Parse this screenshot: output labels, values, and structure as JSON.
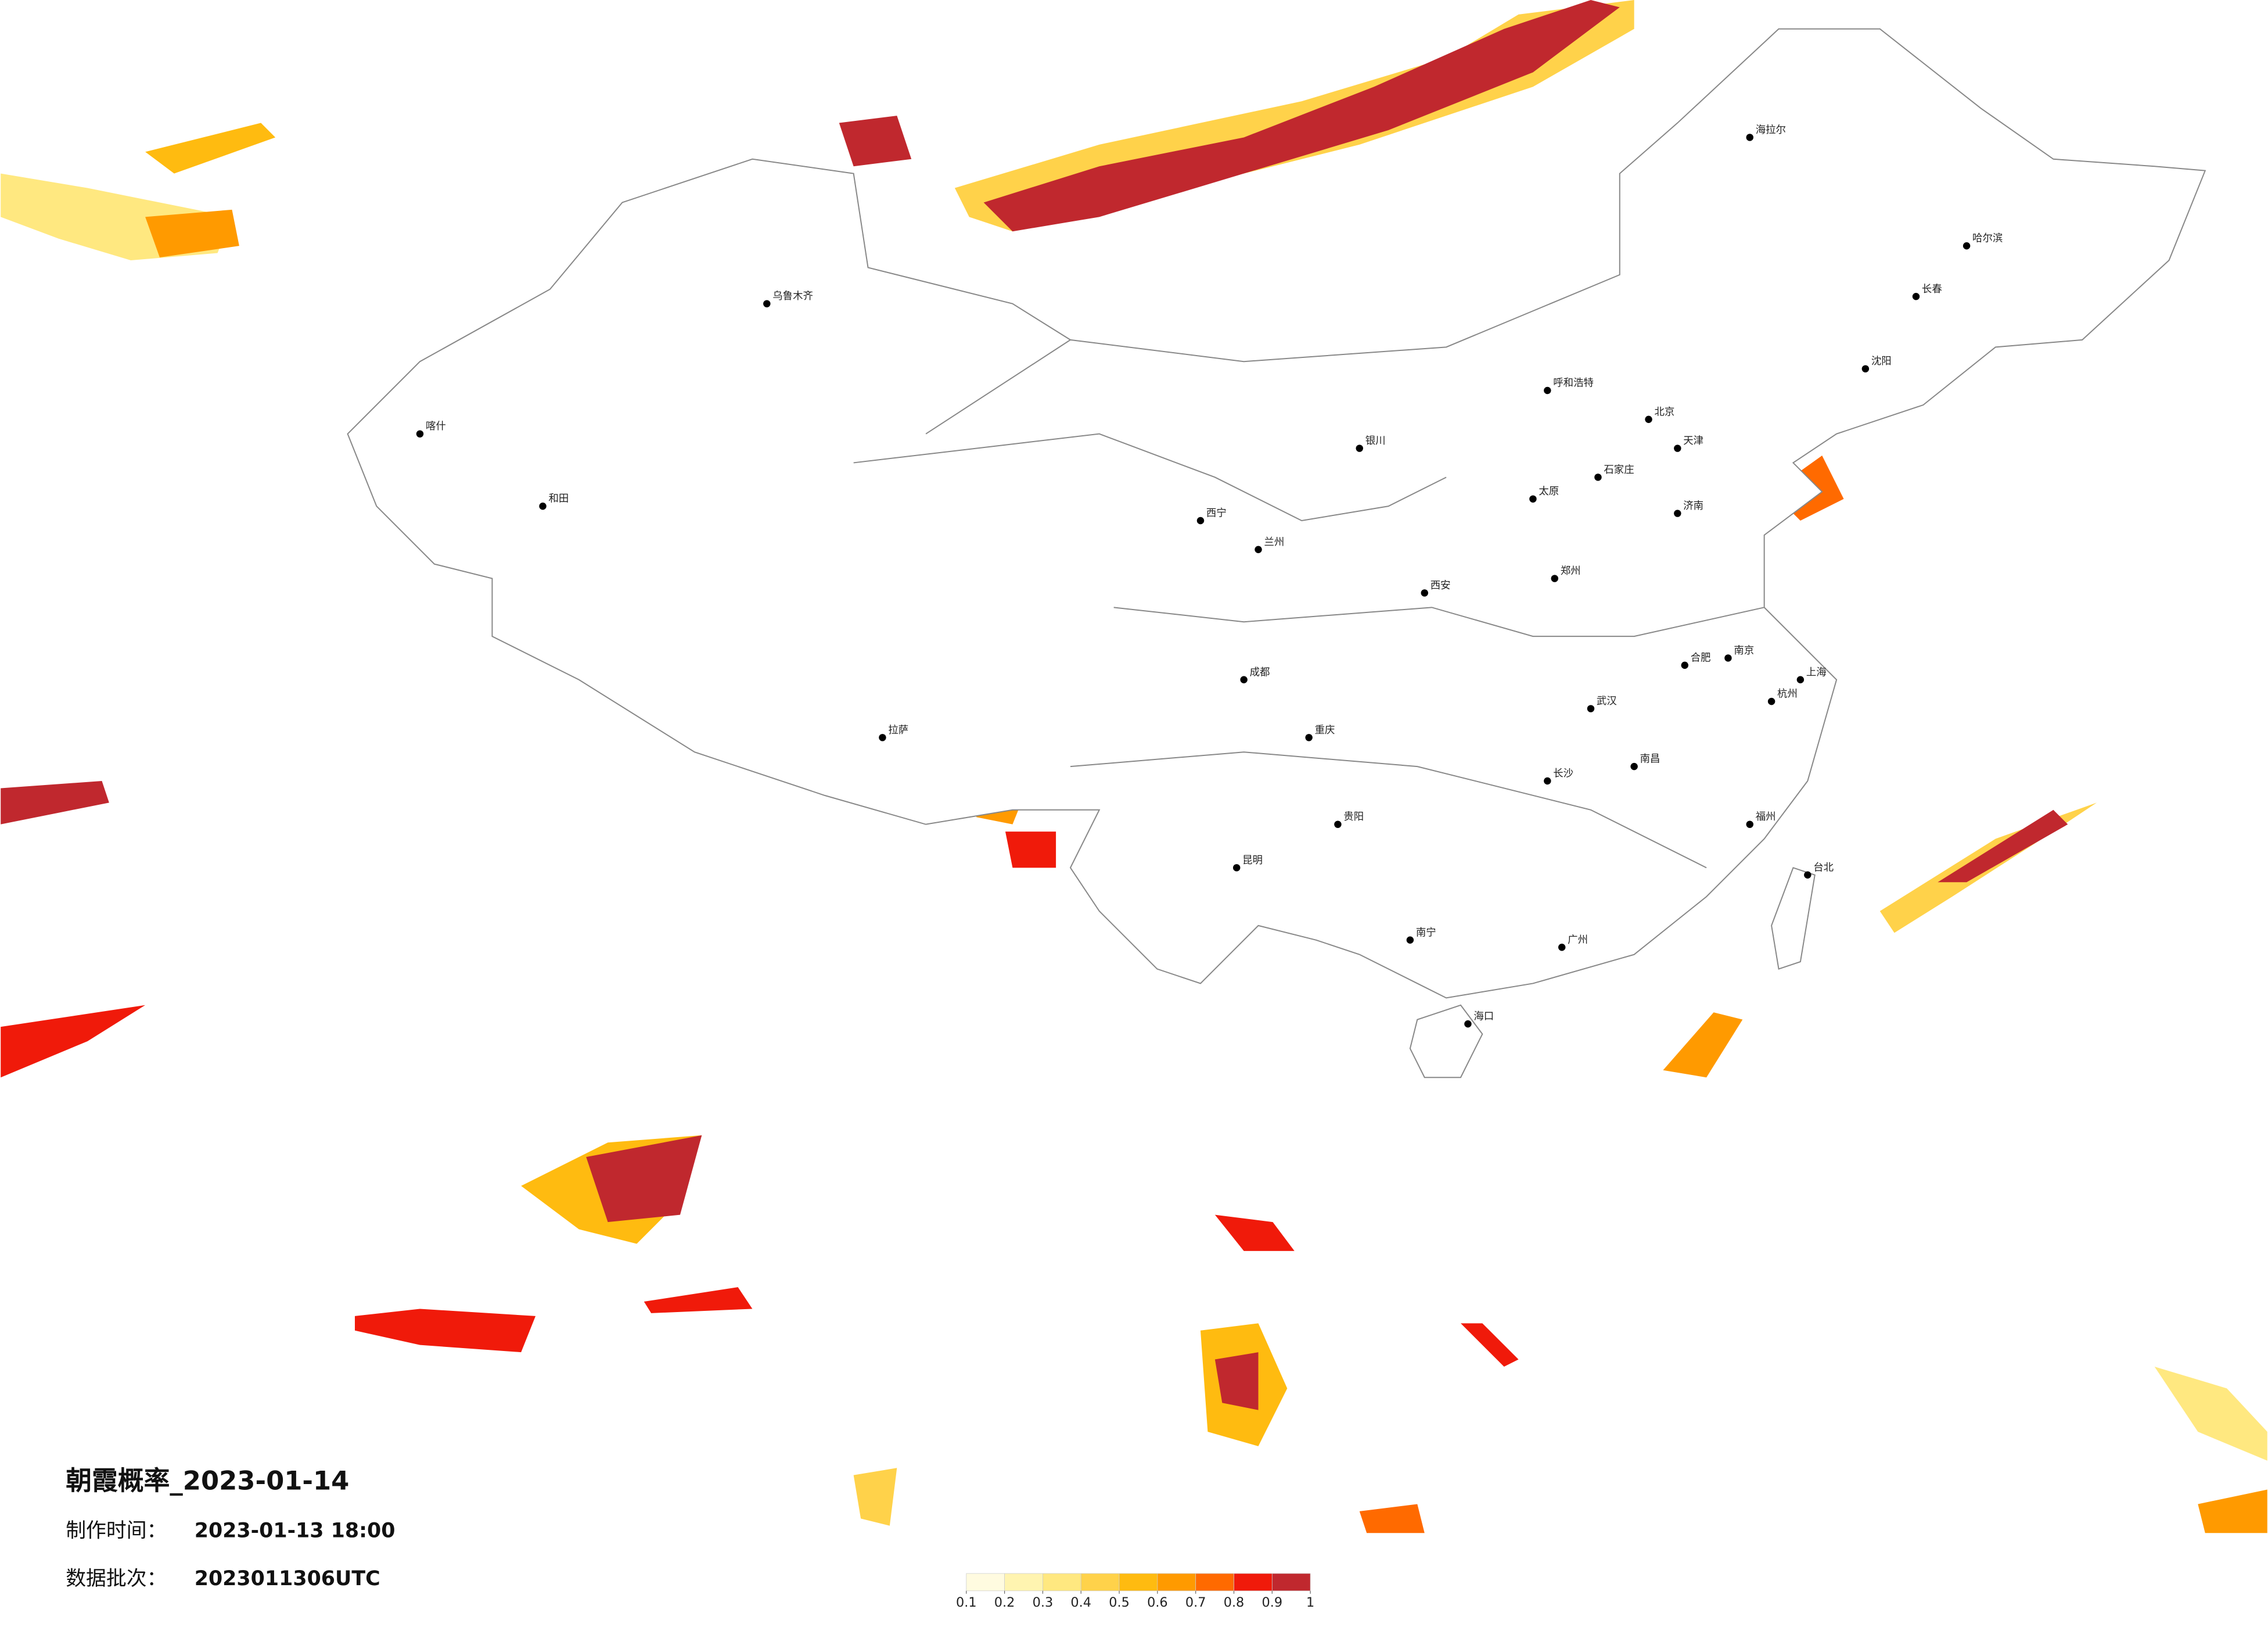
{
  "map": {
    "title": "朝霞概率_2023-01-14",
    "made_label": "制作时间：",
    "made_time": "2023-01-13 18:00",
    "batch_label": "数据批次：",
    "batch": "2023011306UTC",
    "colorbar": {
      "ticks": [
        0.1,
        0.2,
        0.3,
        0.4,
        0.5,
        0.6,
        0.7,
        0.8,
        0.9,
        1
      ],
      "colors": [
        "#fffbe0",
        "#fff4b0",
        "#ffe880",
        "#ffd24a",
        "#ffbb10",
        "#ff9a00",
        "#ff6a00",
        "#f01a0a",
        "#c0282e"
      ]
    },
    "cities": [
      "北京",
      "天津",
      "上海",
      "广州",
      "重庆",
      "成都",
      "西安",
      "武汉",
      "南京",
      "杭州",
      "长沙",
      "昆明",
      "贵阳",
      "南宁",
      "海口",
      "郑州",
      "济南",
      "石家庄",
      "太原",
      "呼和浩特",
      "哈尔滨",
      "长春",
      "沈阳",
      "兰州",
      "西宁",
      "银川",
      "乌鲁木齐",
      "拉萨",
      "福州",
      "南昌",
      "合肥",
      "台北",
      "海拉尔",
      "喀什",
      "和田"
    ]
  }
}
